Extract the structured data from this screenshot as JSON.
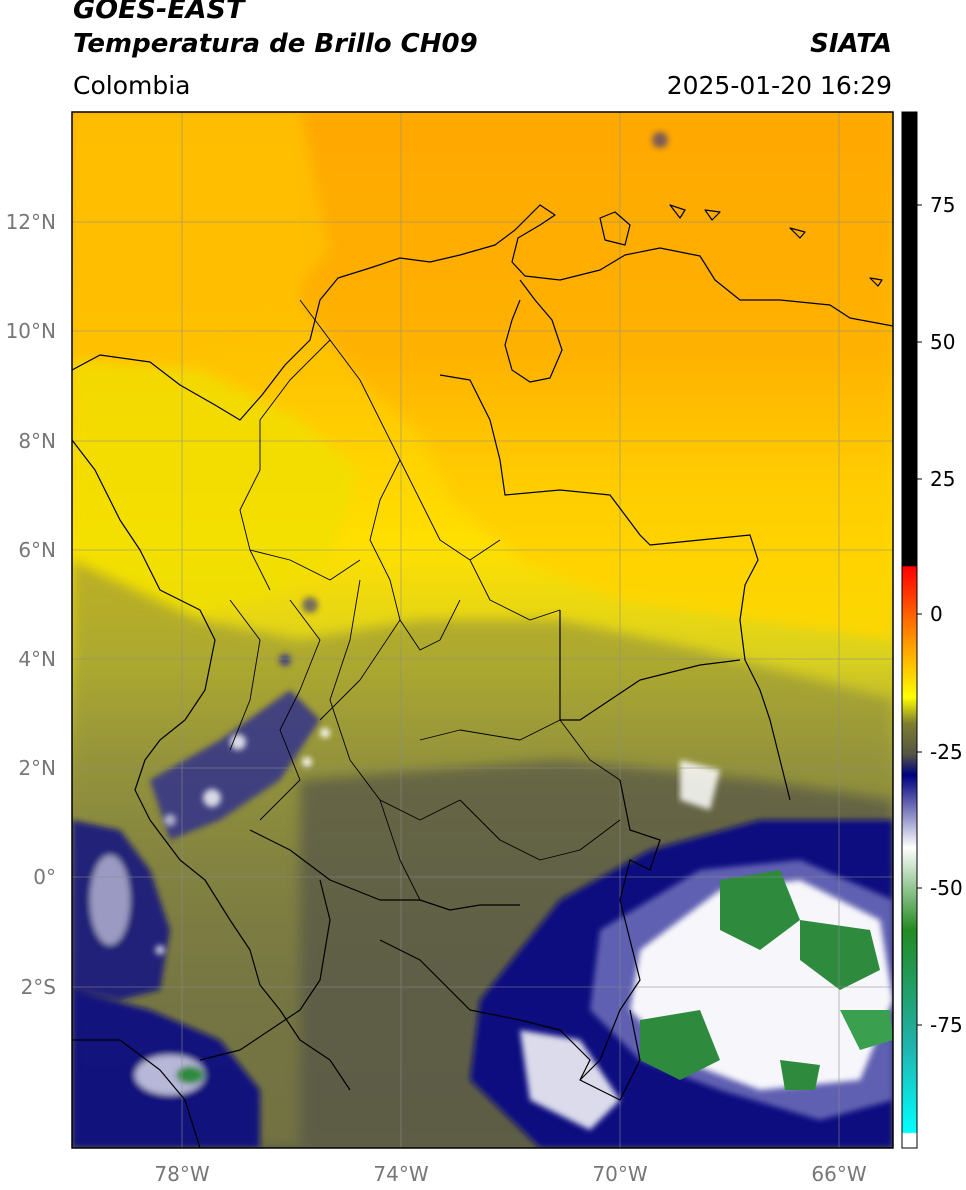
{
  "title": {
    "line1": "GOES-EAST",
    "line2": "Temperatura de Brillo CH09",
    "region": "Colombia",
    "agency": "SIATA",
    "timestamp": "2025-01-20 16:29"
  },
  "map": {
    "lat_labels": [
      "12°N",
      "10°N",
      "8°N",
      "6°N",
      "4°N",
      "2°N",
      "0°",
      "2°S"
    ],
    "lon_labels": [
      "78°W",
      "74°W",
      "70°W",
      "66°W"
    ],
    "lat_range": [
      -5,
      14
    ],
    "lon_range": [
      -80,
      -65
    ],
    "grid": true,
    "features": [
      "coastlines",
      "country-borders",
      "department-borders",
      "cloud-top-brightness-temperature"
    ]
  },
  "colorbar": {
    "ticks": [
      "75",
      "50",
      "25",
      "0",
      "-25",
      "-50",
      "-75"
    ],
    "range": [
      -95,
      90
    ],
    "stops": [
      {
        "value": 90,
        "color": "#000000"
      },
      {
        "value": 8,
        "color": "#000000"
      },
      {
        "value": 7.9,
        "color": "#ff0000"
      },
      {
        "value": -5,
        "color": "#ff8000"
      },
      {
        "value": -15,
        "color": "#ffff00"
      },
      {
        "value": -20,
        "color": "#7f7f2f"
      },
      {
        "value": -28,
        "color": "#404040"
      },
      {
        "value": -32,
        "color": "#000080"
      },
      {
        "value": -45,
        "color": "#ffffff"
      },
      {
        "value": -60,
        "color": "#228b22"
      },
      {
        "value": -80,
        "color": "#20b2aa"
      },
      {
        "value": -90,
        "color": "#00ffff"
      },
      {
        "value": -91,
        "color": "#ffffff"
      }
    ]
  },
  "colors": {
    "warm_orange": "#ffb000",
    "warm_yellow": "#ffee00",
    "olive": "#9a9a36",
    "dark_gray": "#5a5a48",
    "navy": "#0a0a80",
    "cloud_white": "#ffffff",
    "cold_green": "#2e8b3e"
  }
}
